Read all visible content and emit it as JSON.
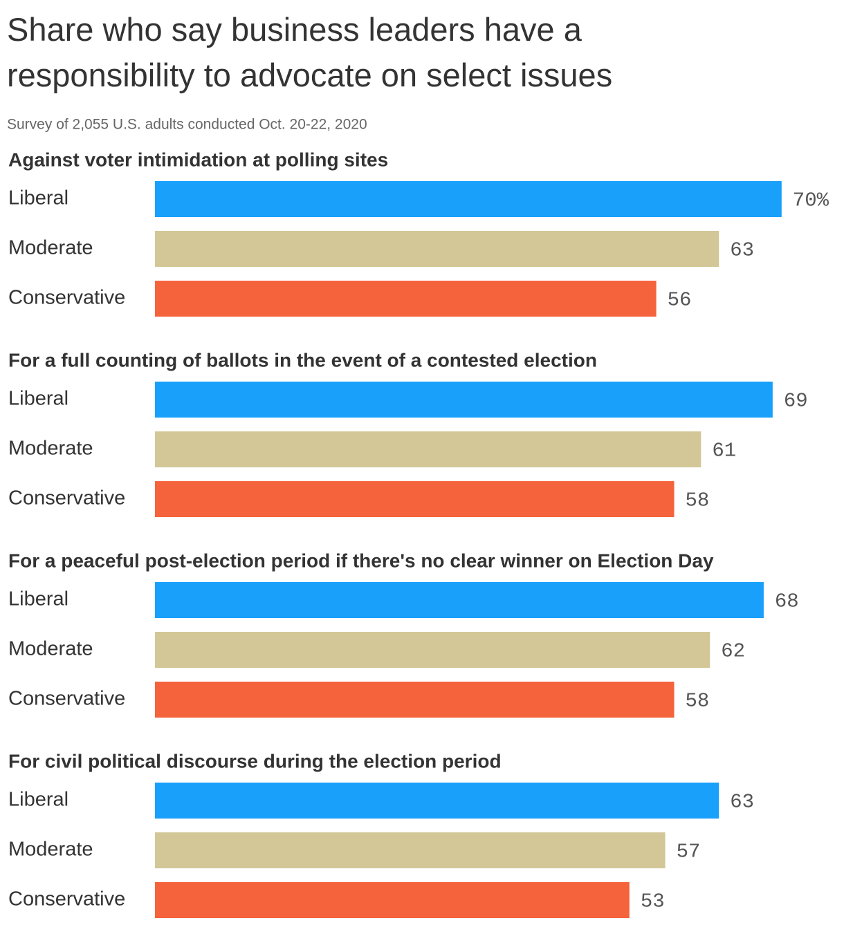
{
  "title": "Share who say business leaders have a responsibility to advocate on select issues",
  "subtitle": "Survey of 2,055 U.S. adults conducted Oct. 20-22, 2020",
  "chart_data": [
    {
      "type": "bar",
      "title": "Against voter intimidation at polling sites",
      "categories": [
        "Liberal",
        "Moderate",
        "Conservative"
      ],
      "values": [
        70,
        63,
        56
      ],
      "value_labels": [
        "70%",
        "63",
        "56"
      ],
      "colors": [
        "#18a0fb",
        "#d3c797",
        "#f5633d"
      ]
    },
    {
      "type": "bar",
      "title": "For a full counting of ballots in the event of a contested election",
      "categories": [
        "Liberal",
        "Moderate",
        "Conservative"
      ],
      "values": [
        69,
        61,
        58
      ],
      "colors": [
        "#18a0fb",
        "#d3c797",
        "#f5633d"
      ]
    },
    {
      "type": "bar",
      "title": "For a peaceful post-election period if there's no clear winner on Election Day",
      "categories": [
        "Liberal",
        "Moderate",
        "Conservative"
      ],
      "values": [
        68,
        62,
        58
      ],
      "colors": [
        "#18a0fb",
        "#d3c797",
        "#f5633d"
      ]
    },
    {
      "type": "bar",
      "title": "For civil political discourse during the election period",
      "categories": [
        "Liberal",
        "Moderate",
        "Conservative"
      ],
      "values": [
        63,
        57,
        53
      ],
      "colors": [
        "#18a0fb",
        "#d3c797",
        "#f5633d"
      ]
    }
  ]
}
